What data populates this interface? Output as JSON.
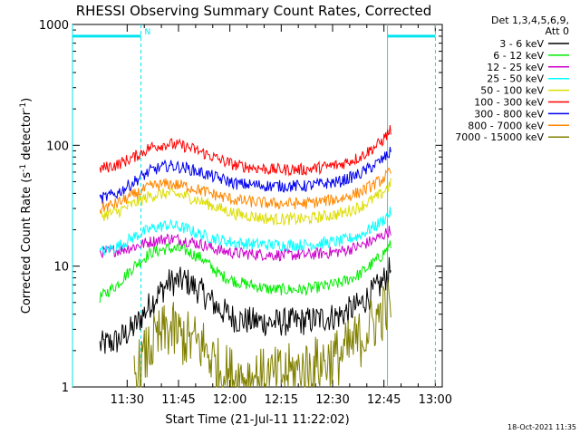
{
  "chart_data": {
    "type": "line",
    "title": "RHESSI Observing Summary Count Rates, Corrected",
    "xlabel": "Start Time (21-Jul-11 11:22:02)",
    "ylabel_main": "Corrected Count Rate (s",
    "ylabel_sup1": "-1",
    "ylabel_mid": " detector",
    "ylabel_sup2": "-1",
    "ylabel_end": ")",
    "y_scale": "log",
    "ylim": [
      1,
      1000
    ],
    "xlim_minutes": [
      -8,
      100
    ],
    "x_ticks": [
      "11:30",
      "11:45",
      "12:00",
      "12:15",
      "12:30",
      "12:45",
      "13:00"
    ],
    "y_ticks": [
      "1",
      "10",
      "100",
      "1000"
    ],
    "legend_header": [
      "Det 1,3,4,5,6,9,",
      "Att 0"
    ],
    "legend_position": "outside-right",
    "night_marker": "N",
    "footer_date": "18-Oct-2021 11:35",
    "series": [
      {
        "name": "3 - 6 keV",
        "color": "#000000",
        "points": [
          [
            0,
            2.2
          ],
          [
            5,
            2.4
          ],
          [
            10,
            3.1
          ],
          [
            15,
            5
          ],
          [
            20,
            7.3
          ],
          [
            25,
            7.6
          ],
          [
            30,
            6
          ],
          [
            35,
            4.4
          ],
          [
            40,
            3.6
          ],
          [
            50,
            3.4
          ],
          [
            60,
            3.5
          ],
          [
            70,
            3.9
          ],
          [
            76,
            4.8
          ],
          [
            82,
            7
          ],
          [
            85,
            9.5
          ]
        ]
      },
      {
        "name": "6 - 12 keV",
        "color": "#00ee00",
        "points": [
          [
            0,
            5.5
          ],
          [
            5,
            7
          ],
          [
            10,
            10
          ],
          [
            15,
            13
          ],
          [
            20,
            14
          ],
          [
            25,
            13.5
          ],
          [
            30,
            11.5
          ],
          [
            35,
            8.5
          ],
          [
            40,
            7.4
          ],
          [
            50,
            6.4
          ],
          [
            60,
            6.4
          ],
          [
            70,
            7.2
          ],
          [
            76,
            8.6
          ],
          [
            82,
            12
          ],
          [
            85,
            15
          ]
        ]
      },
      {
        "name": "12 - 25 keV",
        "color": "#cc00cc",
        "points": [
          [
            0,
            13
          ],
          [
            5,
            13.5
          ],
          [
            10,
            14.5
          ],
          [
            15,
            16
          ],
          [
            20,
            17
          ],
          [
            25,
            16.3
          ],
          [
            30,
            15
          ],
          [
            35,
            13.5
          ],
          [
            40,
            12.8
          ],
          [
            50,
            12.4
          ],
          [
            60,
            12.4
          ],
          [
            70,
            13.2
          ],
          [
            76,
            14.6
          ],
          [
            82,
            17.5
          ],
          [
            85,
            20
          ]
        ]
      },
      {
        "name": "25 - 50 keV",
        "color": "#00ffff",
        "points": [
          [
            0,
            13
          ],
          [
            5,
            14.5
          ],
          [
            10,
            17.5
          ],
          [
            15,
            20.5
          ],
          [
            20,
            22
          ],
          [
            25,
            20.5
          ],
          [
            30,
            18
          ],
          [
            35,
            16.5
          ],
          [
            40,
            15.5
          ],
          [
            50,
            15
          ],
          [
            60,
            15
          ],
          [
            70,
            16
          ],
          [
            76,
            18
          ],
          [
            82,
            23
          ],
          [
            85,
            28
          ]
        ]
      },
      {
        "name": "50 - 100 keV",
        "color": "#dddd00",
        "points": [
          [
            0,
            26
          ],
          [
            5,
            28
          ],
          [
            10,
            33
          ],
          [
            15,
            38.5
          ],
          [
            20,
            40
          ],
          [
            25,
            38
          ],
          [
            30,
            34
          ],
          [
            35,
            30
          ],
          [
            40,
            27
          ],
          [
            50,
            24.5
          ],
          [
            60,
            24.5
          ],
          [
            70,
            27
          ],
          [
            76,
            31
          ],
          [
            82,
            39
          ],
          [
            85,
            48
          ]
        ]
      },
      {
        "name": "100 - 300 keV",
        "color": "#ff0000",
        "points": [
          [
            0,
            64
          ],
          [
            5,
            69
          ],
          [
            10,
            80
          ],
          [
            15,
            97
          ],
          [
            20,
            103
          ],
          [
            25,
            98
          ],
          [
            30,
            87
          ],
          [
            35,
            76
          ],
          [
            40,
            68
          ],
          [
            50,
            63
          ],
          [
            60,
            63
          ],
          [
            70,
            69
          ],
          [
            76,
            80
          ],
          [
            82,
            105
          ],
          [
            85,
            135
          ]
        ]
      },
      {
        "name": "300 - 800 keV",
        "color": "#0000ee",
        "points": [
          [
            0,
            36
          ],
          [
            5,
            40
          ],
          [
            10,
            50
          ],
          [
            15,
            62
          ],
          [
            20,
            68
          ],
          [
            25,
            65
          ],
          [
            30,
            59
          ],
          [
            35,
            53
          ],
          [
            40,
            48
          ],
          [
            50,
            46
          ],
          [
            60,
            46
          ],
          [
            70,
            50
          ],
          [
            76,
            58
          ],
          [
            82,
            74
          ],
          [
            85,
            88
          ]
        ]
      },
      {
        "name": "800 - 7000 keV",
        "color": "#ff8800",
        "points": [
          [
            0,
            30
          ],
          [
            5,
            33
          ],
          [
            10,
            39
          ],
          [
            15,
            46
          ],
          [
            20,
            48
          ],
          [
            25,
            46
          ],
          [
            30,
            42
          ],
          [
            35,
            38
          ],
          [
            40,
            35
          ],
          [
            50,
            33
          ],
          [
            60,
            33
          ],
          [
            70,
            36
          ],
          [
            76,
            41
          ],
          [
            82,
            51
          ],
          [
            85,
            60
          ]
        ]
      },
      {
        "name": "7000 - 15000 keV",
        "color": "#808000",
        "points": [
          [
            10,
            1.2
          ],
          [
            15,
            2.2
          ],
          [
            20,
            3
          ],
          [
            25,
            2.5
          ],
          [
            30,
            2.2
          ],
          [
            35,
            1.4
          ],
          [
            40,
            1.2
          ],
          [
            50,
            1.2
          ],
          [
            60,
            1.4
          ],
          [
            70,
            1.8
          ],
          [
            76,
            2.5
          ],
          [
            82,
            4
          ],
          [
            85,
            5
          ]
        ]
      }
    ],
    "attenuator_lines": [
      {
        "x_start": -8,
        "x_end": 12,
        "y": 800
      },
      {
        "x_start": 84,
        "x_end": 98,
        "y": 800
      }
    ],
    "vertical_markers": [
      {
        "x": -8,
        "style": "solid"
      },
      {
        "x": 12,
        "style": "dashed"
      },
      {
        "x": 84,
        "style": "solid"
      },
      {
        "x": 98,
        "style": "dashed"
      }
    ]
  }
}
